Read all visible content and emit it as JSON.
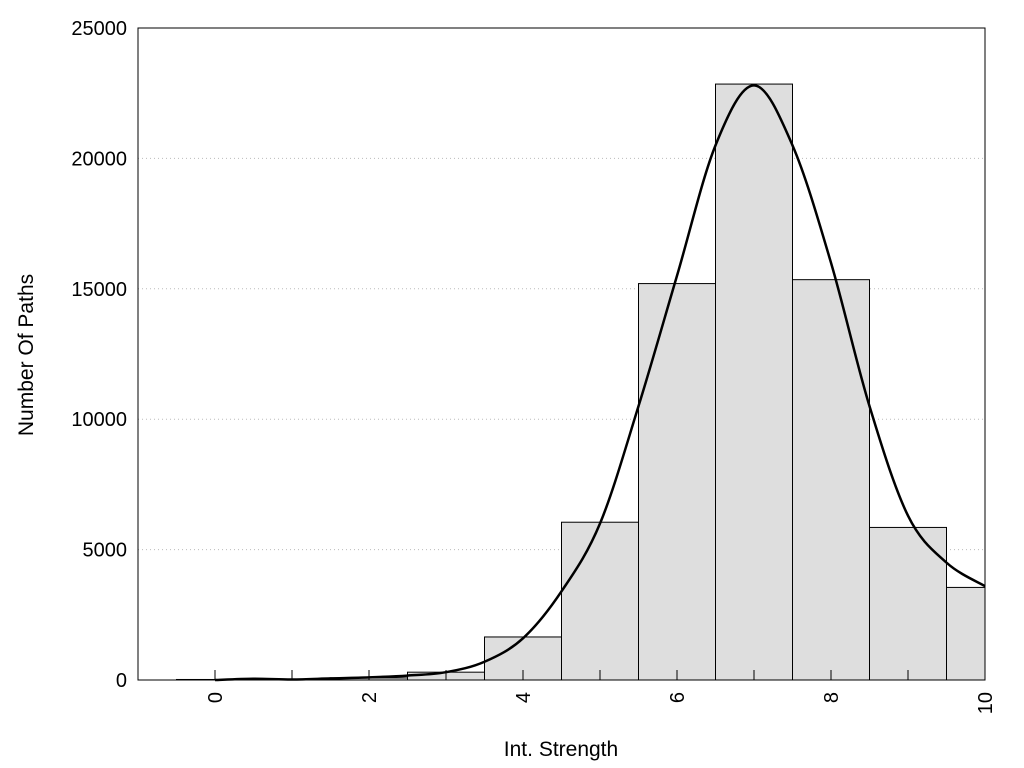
{
  "chart_data": {
    "type": "bar",
    "title": "",
    "xlabel": "Int. Strength",
    "ylabel": "Number Of Paths",
    "xlim": [
      -1,
      10
    ],
    "ylim": [
      0,
      25000
    ],
    "x_ticks": [
      0,
      2,
      4,
      6,
      8,
      10
    ],
    "y_ticks": [
      0,
      5000,
      10000,
      15000,
      20000,
      25000
    ],
    "grid": "horizontal dotted",
    "legend": "none",
    "bars": {
      "bin_width": 1,
      "x": [
        0,
        1,
        2,
        3,
        4,
        5,
        6,
        7,
        8,
        9,
        10
      ],
      "values": [
        20,
        30,
        80,
        300,
        1650,
        6050,
        15200,
        22850,
        15350,
        5850,
        3550
      ]
    },
    "curve": {
      "x": [
        0,
        0.5,
        1,
        1.5,
        2,
        2.5,
        3,
        3.5,
        4,
        4.5,
        5,
        5.5,
        6,
        6.5,
        7,
        7.5,
        8,
        8.5,
        9,
        9.5,
        10
      ],
      "y": [
        0,
        50,
        20,
        60,
        100,
        170,
        300,
        700,
        1600,
        3400,
        6000,
        10500,
        15500,
        20500,
        22800,
        20500,
        16000,
        10500,
        6300,
        4500,
        3600
      ]
    },
    "colors": {
      "bar_fill": "#dedede",
      "bar_stroke": "#000000",
      "curve": "#000000",
      "grid": "#bbbbbb"
    }
  }
}
